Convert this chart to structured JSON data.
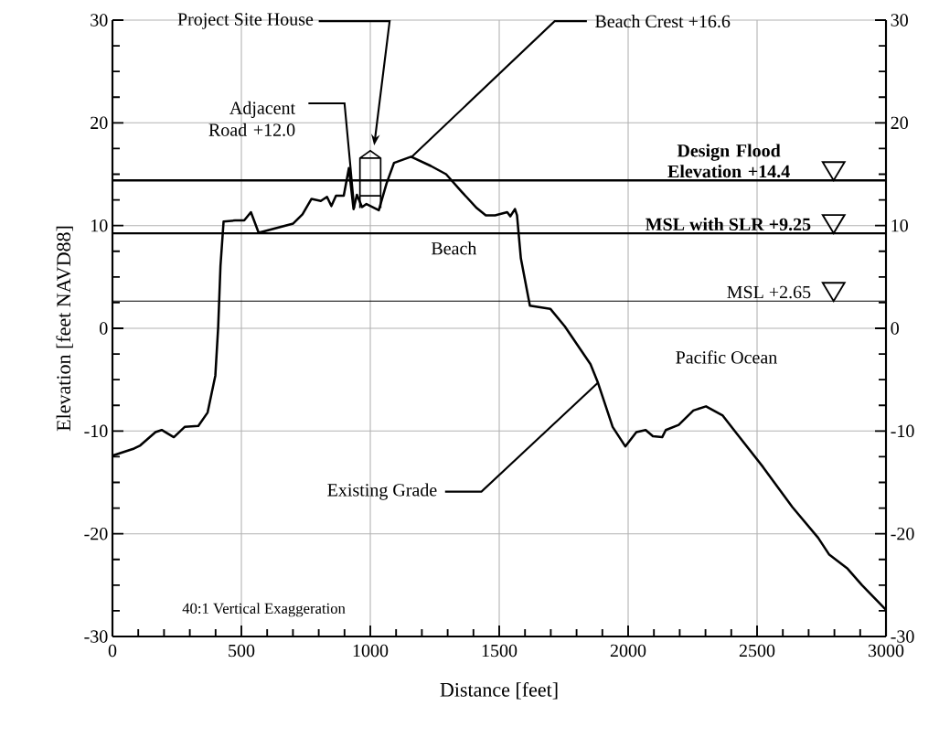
{
  "chart_data": {
    "type": "line",
    "xlabel": "Distance [feet]",
    "ylabel": "Elevation [feet NAVD88]",
    "x": [
      0,
      84,
      108,
      167,
      191,
      238,
      280,
      333,
      369,
      399,
      410,
      419,
      431,
      476,
      511,
      537,
      567,
      701,
      737,
      772,
      808,
      832,
      849,
      867,
      897,
      917,
      935,
      948,
      968,
      985,
      1033,
      1063,
      1092,
      1158,
      1235,
      1294,
      1354,
      1413,
      1448,
      1484,
      1531,
      1543,
      1561,
      1569,
      1584,
      1619,
      1698,
      1754,
      1854,
      1883,
      1940,
      1989,
      2032,
      2068,
      2096,
      2132,
      2146,
      2196,
      2253,
      2302,
      2367,
      2423,
      2523,
      2637,
      2737,
      2779,
      2851,
      2907,
      3000
    ],
    "values": [
      -12.4,
      -11.7,
      -11.4,
      -10.1,
      -9.9,
      -10.6,
      -9.6,
      -9.5,
      -8.2,
      -4.6,
      0.1,
      6.1,
      10.4,
      10.5,
      10.5,
      11.3,
      9.3,
      10.2,
      11.1,
      12.6,
      12.4,
      12.8,
      11.9,
      12.9,
      12.9,
      15.6,
      11.6,
      13.0,
      11.8,
      12.1,
      11.5,
      14.1,
      16.1,
      16.7,
      15.8,
      15.0,
      13.3,
      11.7,
      11.0,
      11.0,
      11.3,
      10.9,
      11.6,
      11.0,
      6.8,
      2.2,
      1.9,
      0.2,
      -3.5,
      -5.3,
      -9.6,
      -11.5,
      -10.1,
      -9.9,
      -10.5,
      -10.6,
      -9.9,
      -9.4,
      -8.0,
      -7.6,
      -8.5,
      -10.3,
      -13.5,
      -17.4,
      -20.4,
      -22.0,
      -23.4,
      -25.0,
      -27.4
    ],
    "color": "#000000",
    "xlim": [
      0,
      3000
    ],
    "xticks": [
      0,
      500,
      1000,
      1500,
      2000,
      2500,
      3000
    ],
    "ylim": [
      -30,
      30
    ],
    "yticks": [
      -30,
      -20,
      -10,
      0,
      10,
      20,
      30
    ],
    "y2lim": [
      -30,
      30
    ],
    "y2ticks": [
      -30,
      -20,
      -10,
      0,
      10,
      20,
      30
    ],
    "grid": true,
    "ref_lines": [
      {
        "axis": "y",
        "value": 14.4,
        "label": "Design Flood Elevation +14.4"
      },
      {
        "axis": "y",
        "value": 9.25,
        "label": "MSL with SLR +9.25"
      },
      {
        "axis": "y",
        "value": 2.65,
        "label": "MSL +2.65"
      }
    ],
    "annotations": [
      "Project Site House",
      {
        "text": "Adjacent Road +12.0",
        "x": 938,
        "y": 11.7
      },
      {
        "text": "Beach Crest +16.6",
        "x": 1157,
        "y": 16.6
      },
      {
        "text": "Existing Grade",
        "x": 1883,
        "y": -5.3
      },
      "Beach",
      "Pacific Ocean",
      "40:1 Vertical Exaggeration"
    ]
  }
}
